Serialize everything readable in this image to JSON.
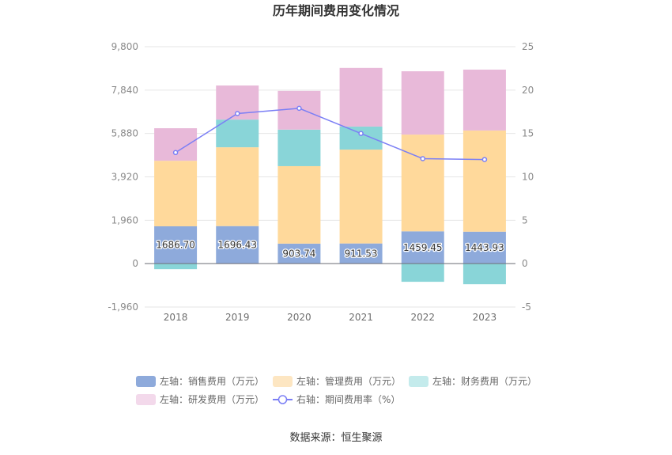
{
  "chart_data": {
    "type": "bar",
    "title": "历年期间费用变化情况",
    "categories": [
      "2018",
      "2019",
      "2020",
      "2021",
      "2022",
      "2023"
    ],
    "stacked": true,
    "grid": true,
    "legend_position": "bottom",
    "y_left": {
      "range": [
        -1960,
        9800
      ],
      "ticks": [
        -1960,
        0,
        1960,
        3920,
        5880,
        7840,
        9800
      ],
      "tick_labels": [
        "-1,960",
        "0",
        "1,960",
        "3,920",
        "5,880",
        "7,840",
        "9,800"
      ]
    },
    "y_right": {
      "range": [
        -5,
        25
      ],
      "ticks": [
        -5,
        0,
        5,
        10,
        15,
        20,
        25
      ],
      "tick_labels": [
        "-5",
        "0",
        "5",
        "10",
        "15",
        "20",
        "25"
      ]
    },
    "series": [
      {
        "name": "左轴：销售费用（万元）",
        "type": "bar",
        "y_axis": 0,
        "color": "#8eaadb",
        "legend_color": "#8eaadb",
        "values": [
          1686.7,
          1696.43,
          903.74,
          911.53,
          1459.45,
          1443.93
        ],
        "data_labels": [
          "1686.70",
          "1696.43",
          "903.74",
          "911.53",
          "1459.45",
          "1443.93"
        ]
      },
      {
        "name": "左轴：管理费用（万元）",
        "type": "bar",
        "y_axis": 0,
        "color": "#ffd99b",
        "legend_color": "#fde6c2",
        "values": [
          2960,
          3560,
          3500,
          4240,
          4370,
          4570
        ]
      },
      {
        "name": "左轴：财务费用（万元）",
        "type": "bar",
        "y_axis": 0,
        "color": "#89d5d8",
        "legend_color": "#c4ebec",
        "values": [
          -250,
          1250,
          1650,
          1040,
          -820,
          -930
        ]
      },
      {
        "name": "左轴：研发费用（万元）",
        "type": "bar",
        "y_axis": 0,
        "color": "#e8b9d9",
        "legend_color": "#f3d9eb",
        "values": [
          1470,
          1540,
          1750,
          2650,
          2860,
          2750
        ]
      },
      {
        "name": "右轴：期间费用率（%）",
        "type": "line",
        "y_axis": 1,
        "color": "#7b7ff5",
        "legend_color": "#7b7ff5",
        "values": [
          12.8,
          17.3,
          17.9,
          15.0,
          12.1,
          12.0
        ]
      }
    ]
  },
  "source_note": "数据来源：恒生聚源"
}
